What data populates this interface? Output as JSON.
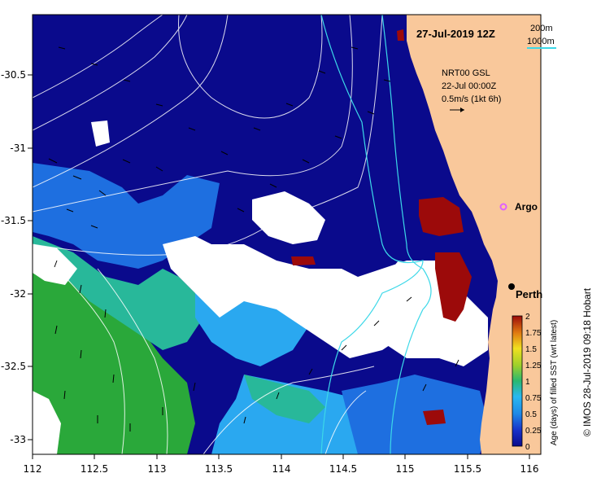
{
  "header": {
    "date": "27-Jul-2019 12Z",
    "depth_200": "200m",
    "depth_1000": "1000m"
  },
  "currents": {
    "source": "NRT00 GSL",
    "time": "22-Jul 00:00Z",
    "scale": "0.5m/s (1kt 6h)"
  },
  "places": [
    {
      "name": "Argo",
      "lon": 115.82,
      "lat": -31.42,
      "color": "#e060ff"
    },
    {
      "name": "Perth",
      "lon": 115.86,
      "lat": -31.95,
      "color": "#000000"
    }
  ],
  "axes": {
    "lon_ticks": [
      "112",
      "112.5",
      "113",
      "113.5",
      "114",
      "114.5",
      "115",
      "115.5",
      "116"
    ],
    "lat_ticks": [
      "-30.5",
      "-31",
      "-31.5",
      "-32",
      "-32.5",
      "-33"
    ]
  },
  "colorbar": {
    "label": "Age (days) of filled SST (wrt latest)",
    "ticks": [
      "0",
      "0.25",
      "0.5",
      "0.75",
      "1",
      "1.25",
      "1.5",
      "1.75",
      "2"
    ],
    "range": [
      0,
      2
    ]
  },
  "credit": "© IMOS 28-Jul-2019 09:18 Hobart",
  "colors": {
    "land": "#f9c89b",
    "age0": "#0a0a8c",
    "age025": "#1e6fe0",
    "age05": "#2aa8f0",
    "age075": "#28b89a",
    "age1": "#2aa83a",
    "age2": "#9c0a0a",
    "nodata": "#ffffff",
    "isobath200": "#3cd8e8",
    "isobath1000": "#3cd8e8"
  }
}
